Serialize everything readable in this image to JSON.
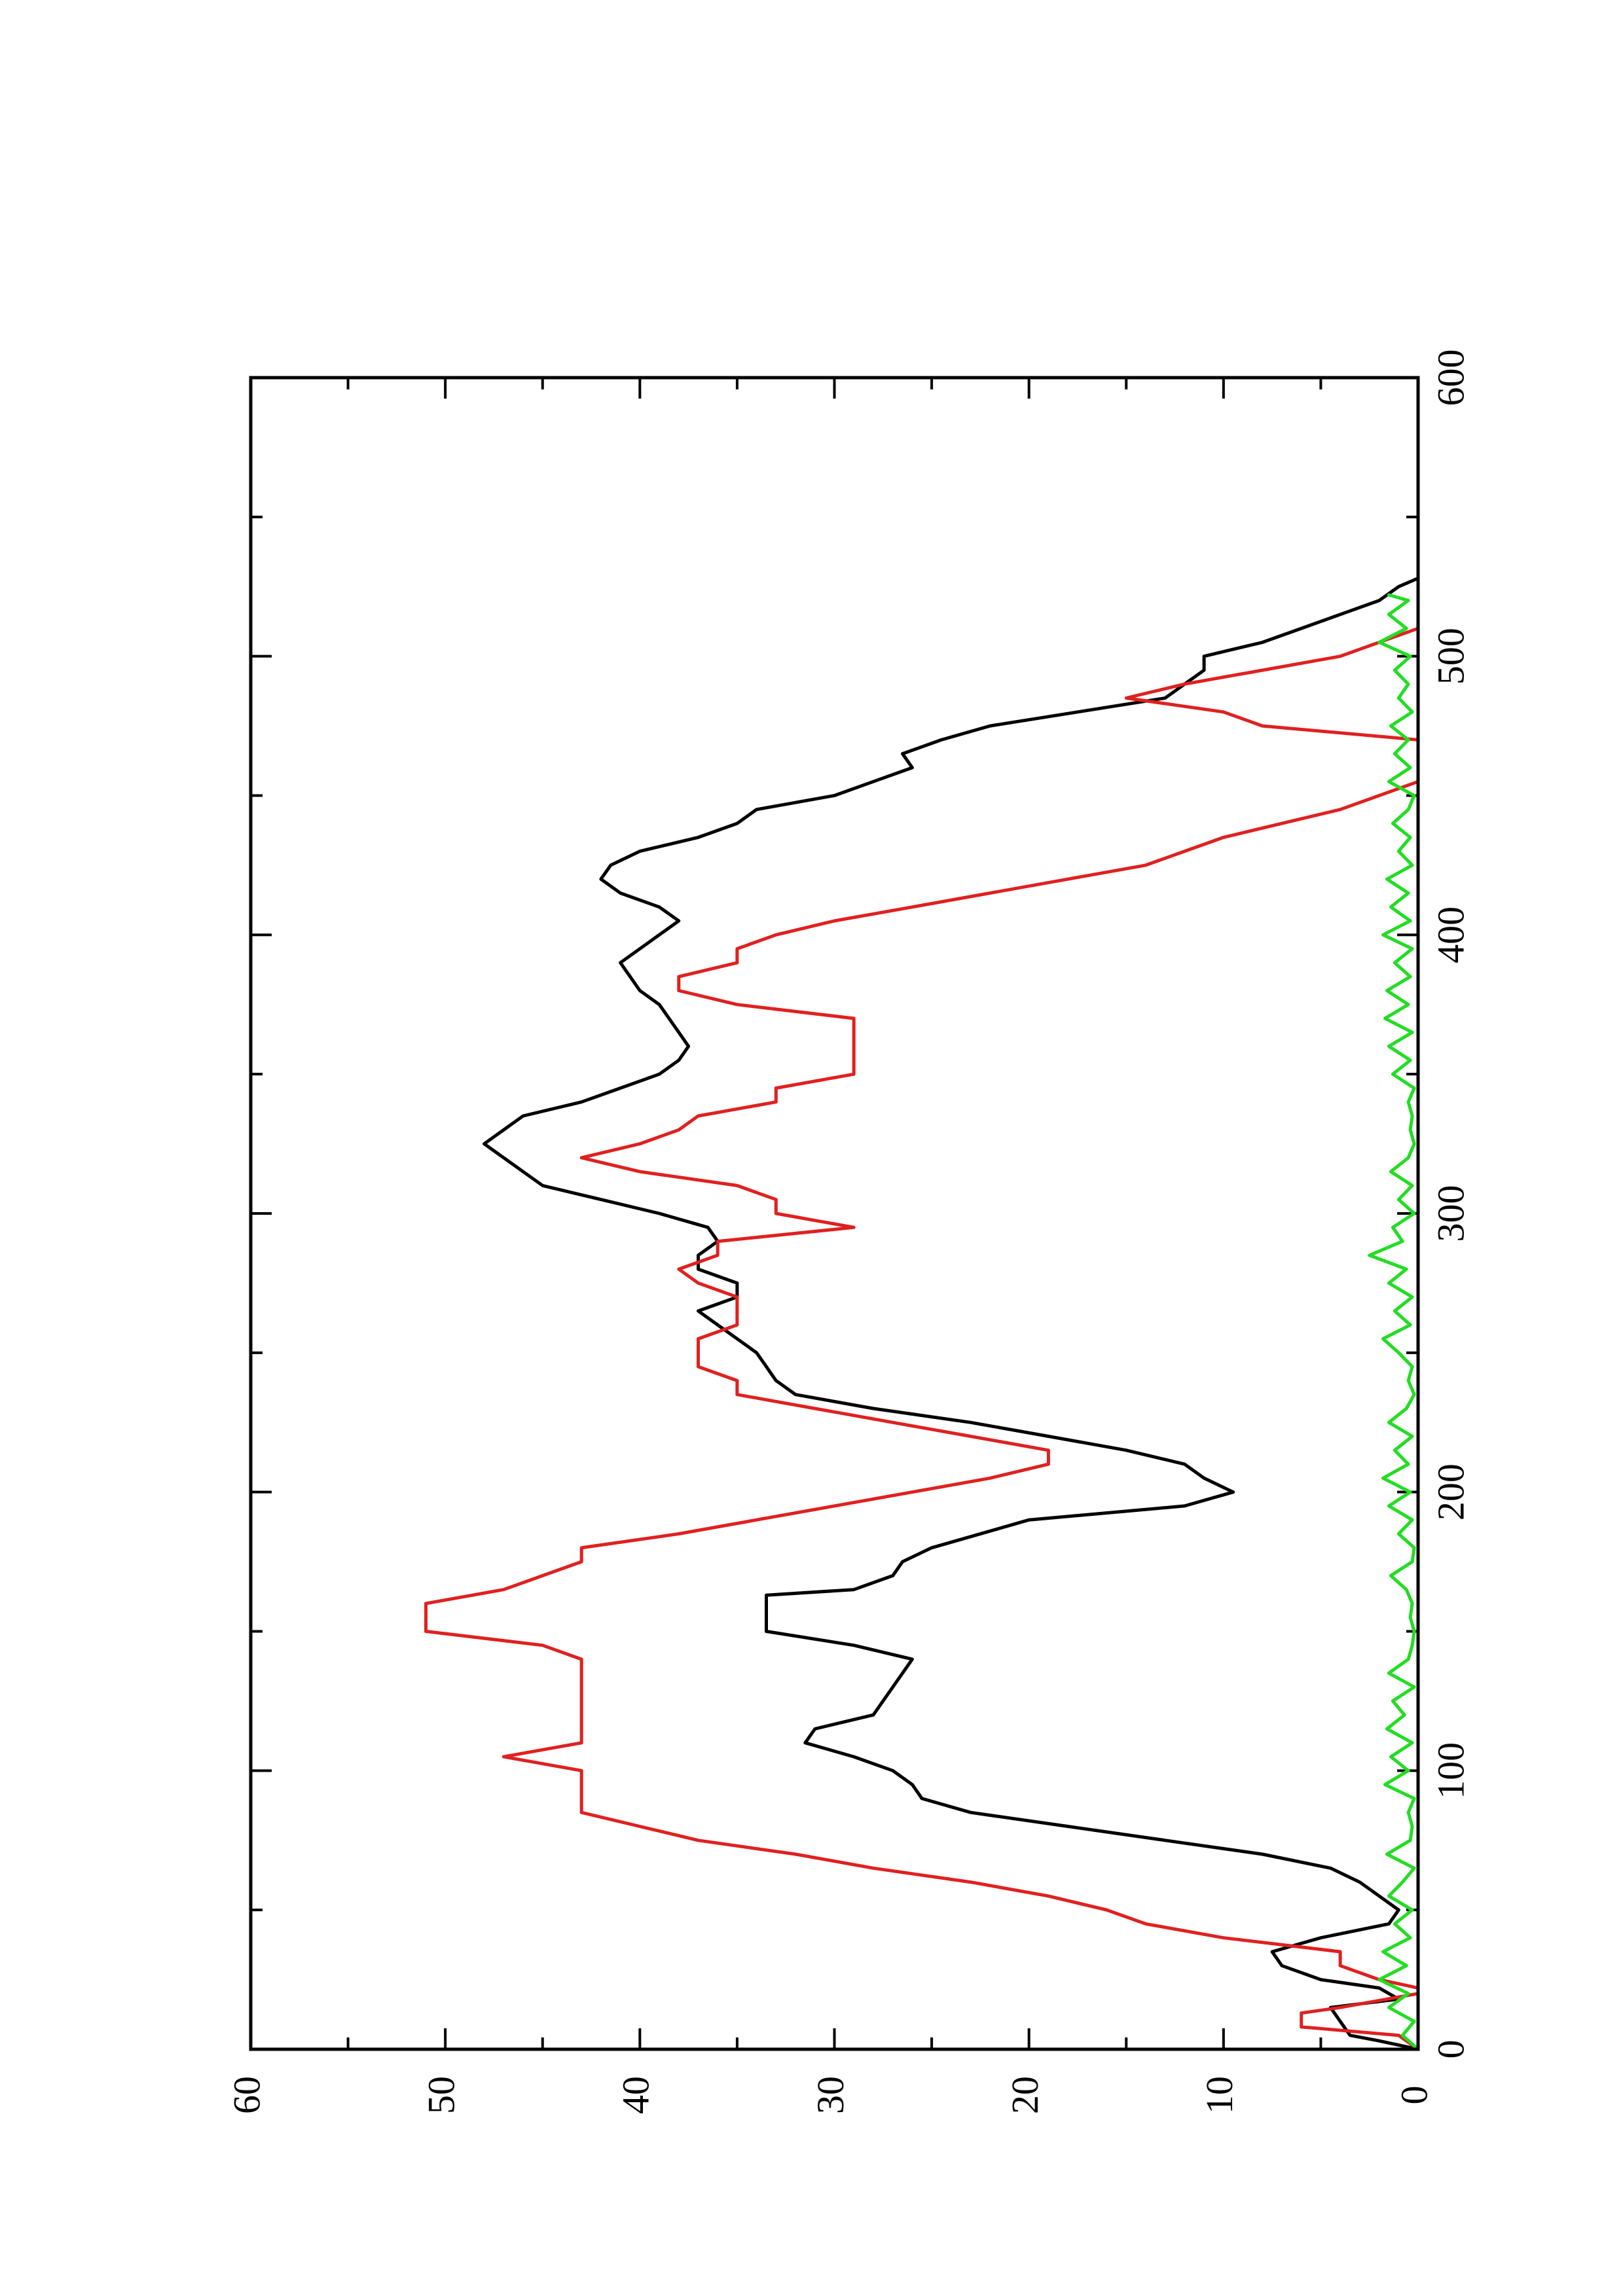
{
  "chart_data": {
    "type": "line",
    "orientation": "rotated-90-ccw",
    "title": "",
    "xlabel": "",
    "ylabel": "",
    "xlim": [
      0,
      600
    ],
    "ylim": [
      0,
      60
    ],
    "x_ticks": [
      0,
      100,
      200,
      300,
      400,
      500,
      600
    ],
    "x_minor_ticks": [
      50,
      150,
      250,
      350,
      450,
      550
    ],
    "y_ticks": [
      0,
      10,
      20,
      30,
      40,
      50,
      60
    ],
    "y_minor_ticks": [
      5,
      15,
      25,
      35,
      45,
      55
    ],
    "grid": false,
    "legend": "none",
    "series": [
      {
        "color": "#000000",
        "points": [
          [
            0,
            0
          ],
          [
            3,
            2
          ],
          [
            5,
            3.5
          ],
          [
            10,
            4
          ],
          [
            15,
            4.5
          ],
          [
            18,
            1
          ],
          [
            22,
            2
          ],
          [
            25,
            5
          ],
          [
            30,
            7
          ],
          [
            35,
            7.5
          ],
          [
            40,
            5
          ],
          [
            45,
            1.5
          ],
          [
            50,
            1
          ],
          [
            55,
            2
          ],
          [
            60,
            3
          ],
          [
            65,
            4.5
          ],
          [
            70,
            8
          ],
          [
            75,
            13
          ],
          [
            80,
            18
          ],
          [
            85,
            23
          ],
          [
            90,
            25.5
          ],
          [
            95,
            26
          ],
          [
            100,
            27
          ],
          [
            105,
            29
          ],
          [
            110,
            31.5
          ],
          [
            115,
            31
          ],
          [
            120,
            28
          ],
          [
            130,
            27
          ],
          [
            140,
            26
          ],
          [
            145,
            29
          ],
          [
            150,
            33.5
          ],
          [
            155,
            33.5
          ],
          [
            163,
            33.5
          ],
          [
            165,
            29
          ],
          [
            170,
            27
          ],
          [
            175,
            26.5
          ],
          [
            180,
            25
          ],
          [
            190,
            20
          ],
          [
            195,
            12
          ],
          [
            200,
            9.5
          ],
          [
            205,
            11
          ],
          [
            210,
            12
          ],
          [
            215,
            15
          ],
          [
            220,
            19
          ],
          [
            225,
            23
          ],
          [
            230,
            28
          ],
          [
            235,
            32
          ],
          [
            240,
            33
          ],
          [
            245,
            33.5
          ],
          [
            250,
            34
          ],
          [
            255,
            35
          ],
          [
            260,
            36
          ],
          [
            265,
            37
          ],
          [
            270,
            35
          ],
          [
            275,
            35
          ],
          [
            280,
            37
          ],
          [
            285,
            37
          ],
          [
            290,
            36
          ],
          [
            295,
            36.5
          ],
          [
            300,
            39
          ],
          [
            305,
            42
          ],
          [
            310,
            45
          ],
          [
            315,
            46
          ],
          [
            320,
            47
          ],
          [
            325,
            48
          ],
          [
            330,
            47
          ],
          [
            335,
            46
          ],
          [
            340,
            43
          ],
          [
            345,
            41
          ],
          [
            350,
            39
          ],
          [
            355,
            38
          ],
          [
            360,
            37.5
          ],
          [
            365,
            38
          ],
          [
            370,
            38.5
          ],
          [
            375,
            39
          ],
          [
            380,
            40
          ],
          [
            385,
            40.5
          ],
          [
            390,
            41
          ],
          [
            395,
            40
          ],
          [
            400,
            39
          ],
          [
            405,
            38
          ],
          [
            410,
            39
          ],
          [
            415,
            41
          ],
          [
            420,
            42
          ],
          [
            425,
            41.5
          ],
          [
            430,
            40
          ],
          [
            435,
            37
          ],
          [
            440,
            35
          ],
          [
            445,
            34
          ],
          [
            450,
            30
          ],
          [
            455,
            28
          ],
          [
            460,
            26
          ],
          [
            465,
            26.5
          ],
          [
            470,
            24.5
          ],
          [
            475,
            22
          ],
          [
            480,
            17.5
          ],
          [
            485,
            13
          ],
          [
            490,
            12
          ],
          [
            495,
            11
          ],
          [
            500,
            11
          ],
          [
            505,
            8
          ],
          [
            510,
            6
          ],
          [
            515,
            4
          ],
          [
            520,
            2
          ],
          [
            525,
            1
          ],
          [
            528,
            0
          ]
        ]
      },
      {
        "color": "#e02020",
        "points": [
          [
            0,
            0
          ],
          [
            5,
            1
          ],
          [
            8,
            6
          ],
          [
            13,
            6
          ],
          [
            15,
            4
          ],
          [
            20,
            0
          ],
          [
            22,
            0
          ],
          [
            25,
            2
          ],
          [
            30,
            4
          ],
          [
            35,
            4
          ],
          [
            40,
            10
          ],
          [
            45,
            14
          ],
          [
            50,
            16
          ],
          [
            55,
            19
          ],
          [
            60,
            23
          ],
          [
            65,
            28
          ],
          [
            70,
            32
          ],
          [
            75,
            37
          ],
          [
            80,
            40
          ],
          [
            85,
            43
          ],
          [
            95,
            43
          ],
          [
            100,
            43
          ],
          [
            105,
            47
          ],
          [
            110,
            43
          ],
          [
            120,
            43
          ],
          [
            140,
            43
          ],
          [
            145,
            45
          ],
          [
            150,
            51
          ],
          [
            155,
            51
          ],
          [
            160,
            51
          ],
          [
            165,
            47
          ],
          [
            170,
            45
          ],
          [
            175,
            43
          ],
          [
            180,
            43
          ],
          [
            185,
            38
          ],
          [
            190,
            34
          ],
          [
            195,
            30
          ],
          [
            200,
            26
          ],
          [
            205,
            22
          ],
          [
            210,
            19
          ],
          [
            215,
            19
          ],
          [
            220,
            23
          ],
          [
            225,
            27
          ],
          [
            230,
            31
          ],
          [
            235,
            35
          ],
          [
            240,
            35
          ],
          [
            245,
            37
          ],
          [
            250,
            37
          ],
          [
            255,
            37
          ],
          [
            260,
            35
          ],
          [
            265,
            35
          ],
          [
            270,
            35
          ],
          [
            275,
            37
          ],
          [
            280,
            38
          ],
          [
            285,
            36
          ],
          [
            290,
            36
          ],
          [
            295,
            29
          ],
          [
            300,
            33
          ],
          [
            305,
            33
          ],
          [
            310,
            35
          ],
          [
            315,
            40
          ],
          [
            320,
            43
          ],
          [
            325,
            40
          ],
          [
            330,
            38
          ],
          [
            335,
            37
          ],
          [
            340,
            33
          ],
          [
            345,
            33
          ],
          [
            350,
            29
          ],
          [
            355,
            29
          ],
          [
            360,
            29
          ],
          [
            365,
            29
          ],
          [
            370,
            29
          ],
          [
            375,
            35
          ],
          [
            380,
            38
          ],
          [
            385,
            38
          ],
          [
            390,
            35
          ],
          [
            395,
            35
          ],
          [
            400,
            33
          ],
          [
            405,
            30
          ],
          [
            410,
            26
          ],
          [
            415,
            22
          ],
          [
            420,
            18
          ],
          [
            425,
            14
          ],
          [
            430,
            12
          ],
          [
            435,
            10
          ],
          [
            440,
            7
          ],
          [
            445,
            4
          ],
          [
            450,
            2
          ],
          [
            455,
            0
          ],
          [
            460,
            0
          ],
          [
            470,
            0
          ],
          [
            475,
            8
          ],
          [
            480,
            10
          ],
          [
            485,
            15
          ],
          [
            490,
            12
          ],
          [
            495,
            8
          ],
          [
            500,
            4
          ],
          [
            505,
            2
          ],
          [
            510,
            0
          ]
        ]
      },
      {
        "color": "#22dd22",
        "points": [
          [
            0,
            0
          ],
          [
            5,
            0.8
          ],
          [
            10,
            0.2
          ],
          [
            15,
            1.5
          ],
          [
            20,
            0.5
          ],
          [
            25,
            2
          ],
          [
            30,
            0.6
          ],
          [
            35,
            1.8
          ],
          [
            40,
            0.4
          ],
          [
            45,
            1.2
          ],
          [
            50,
            0.3
          ],
          [
            55,
            1.5
          ],
          [
            60,
            0.8
          ],
          [
            65,
            0.2
          ],
          [
            70,
            1.6
          ],
          [
            75,
            0.4
          ],
          [
            80,
            0.3
          ],
          [
            85,
            0.5
          ],
          [
            90,
            0.2
          ],
          [
            95,
            1.7
          ],
          [
            100,
            0.5
          ],
          [
            105,
            1.4
          ],
          [
            110,
            0.3
          ],
          [
            115,
            1.6
          ],
          [
            120,
            0.7
          ],
          [
            125,
            1.3
          ],
          [
            130,
            0.2
          ],
          [
            135,
            1.5
          ],
          [
            140,
            0.5
          ],
          [
            145,
            0.3
          ],
          [
            150,
            0.2
          ],
          [
            155,
            0.4
          ],
          [
            160,
            0.3
          ],
          [
            165,
            0.6
          ],
          [
            170,
            1.4
          ],
          [
            175,
            0.3
          ],
          [
            180,
            0.2
          ],
          [
            185,
            1.0
          ],
          [
            190,
            0.3
          ],
          [
            195,
            1.5
          ],
          [
            200,
            0.4
          ],
          [
            205,
            1.8
          ],
          [
            210,
            0.5
          ],
          [
            215,
            1.2
          ],
          [
            220,
            0.3
          ],
          [
            225,
            1.5
          ],
          [
            230,
            0.6
          ],
          [
            235,
            0.2
          ],
          [
            240,
            0.5
          ],
          [
            245,
            0.3
          ],
          [
            250,
            1.0
          ],
          [
            255,
            1.8
          ],
          [
            260,
            0.4
          ],
          [
            265,
            1.2
          ],
          [
            270,
            0.3
          ],
          [
            275,
            1.5
          ],
          [
            280,
            0.6
          ],
          [
            285,
            2.5
          ],
          [
            290,
            0.8
          ],
          [
            295,
            1.3
          ],
          [
            300,
            0.2
          ],
          [
            305,
            1.0
          ],
          [
            310,
            0.3
          ],
          [
            315,
            1.4
          ],
          [
            320,
            0.5
          ],
          [
            325,
            0.2
          ],
          [
            330,
            0.4
          ],
          [
            335,
            0.3
          ],
          [
            340,
            0.5
          ],
          [
            345,
            0.2
          ],
          [
            350,
            1.3
          ],
          [
            355,
            0.4
          ],
          [
            360,
            1.5
          ],
          [
            365,
            0.3
          ],
          [
            370,
            1.7
          ],
          [
            375,
            0.5
          ],
          [
            380,
            1.6
          ],
          [
            385,
            0.4
          ],
          [
            390,
            1.2
          ],
          [
            395,
            0.3
          ],
          [
            400,
            1.8
          ],
          [
            405,
            0.4
          ],
          [
            410,
            1.4
          ],
          [
            415,
            0.5
          ],
          [
            420,
            1.6
          ],
          [
            425,
            0.3
          ],
          [
            430,
            1.0
          ],
          [
            435,
            0.4
          ],
          [
            440,
            1.3
          ],
          [
            445,
            0.5
          ],
          [
            450,
            0.2
          ],
          [
            455,
            1.5
          ],
          [
            460,
            0.4
          ],
          [
            465,
            1.2
          ],
          [
            470,
            0.5
          ],
          [
            475,
            1.4
          ],
          [
            480,
            0.3
          ],
          [
            485,
            1.0
          ],
          [
            490,
            0.5
          ],
          [
            495,
            1.2
          ],
          [
            500,
            0.4
          ],
          [
            505,
            2.0
          ],
          [
            510,
            0.6
          ],
          [
            515,
            1.5
          ],
          [
            520,
            0.5
          ],
          [
            522,
            1.5
          ]
        ]
      }
    ]
  }
}
